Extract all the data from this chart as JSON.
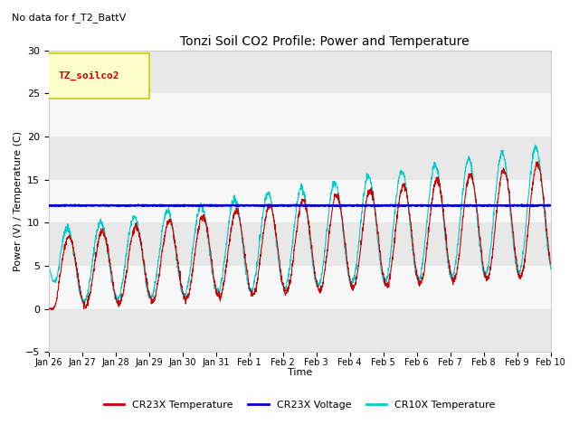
{
  "title": "Tonzi Soil CO2 Profile: Power and Temperature",
  "subtitle": "No data for f_T2_BattV",
  "ylabel": "Power (V) / Temperature (C)",
  "xlabel": "Time",
  "ylim": [
    -5,
    30
  ],
  "yticks": [
    -5,
    0,
    5,
    10,
    15,
    20,
    25,
    30
  ],
  "fig_bg_color": "#ffffff",
  "plot_bg_color": "#f0f0f0",
  "band_colors": [
    "#e8e8e8",
    "#f8f8f8"
  ],
  "legend_box_color": "#ffffcc",
  "legend_box_edge": "#cccc00",
  "legend_label": "TZ_soilco2",
  "cr23x_temp_color": "#cc0000",
  "cr23x_volt_color": "#0000cc",
  "cr10x_temp_color": "#00cccc",
  "cr23x_volt_value": 12.0,
  "x_tick_labels": [
    "Jan 26",
    "Jan 27",
    "Jan 28",
    "Jan 29",
    "Jan 30",
    "Jan 31",
    "Feb 1",
    "Feb 2",
    "Feb 3",
    "Feb 4",
    "Feb 5",
    "Feb 6",
    "Feb 7",
    "Feb 8",
    "Feb 9",
    "Feb 10"
  ]
}
